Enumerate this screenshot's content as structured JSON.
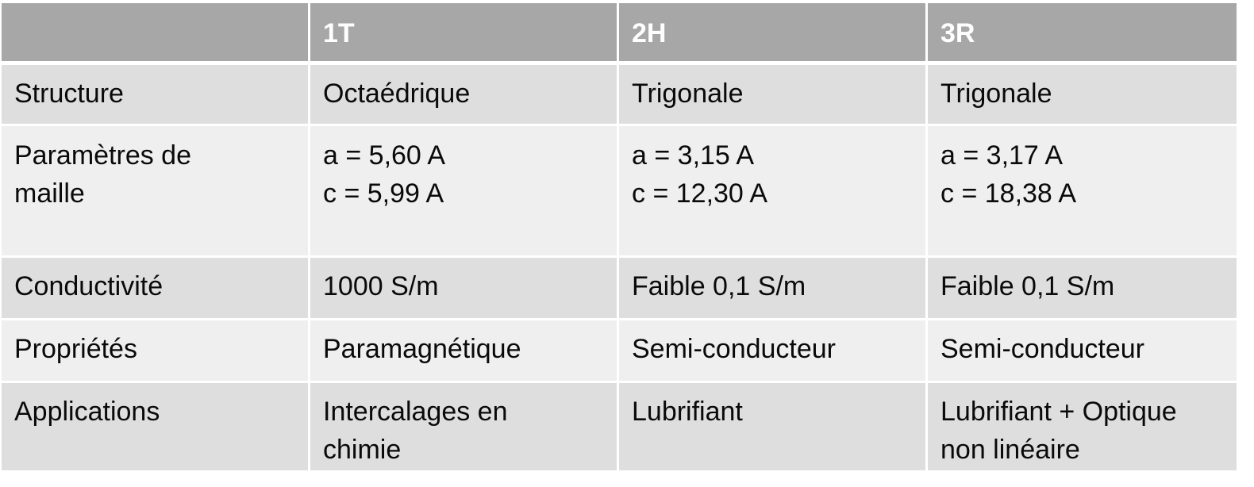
{
  "table": {
    "headers": [
      "",
      "1T",
      "2H",
      "3R"
    ],
    "rows": [
      {
        "label": "Structure",
        "cells": [
          "Octaédrique",
          "Trigonale",
          "Trigonale"
        ]
      },
      {
        "label": "Paramètres de\nmaille",
        "cells": [
          "a = 5,60 A\nc = 5,99 A",
          "a = 3,15 A\nc = 12,30 A",
          "a = 3,17 A\nc = 18,38 A"
        ]
      },
      {
        "label": "Conductivité",
        "cells": [
          "1000 S/m",
          "Faible 0,1 S/m",
          "Faible 0,1 S/m"
        ]
      },
      {
        "label": "Propriétés",
        "cells": [
          "Paramagnétique",
          "Semi-conducteur",
          "Semi-conducteur"
        ]
      },
      {
        "label": "Applications",
        "cells": [
          "Intercalages en\nchimie",
          "Lubrifiant",
          "Lubrifiant + Optique\nnon linéaire"
        ]
      }
    ]
  },
  "colors": {
    "header_bg": "#a7a7a7",
    "header_text": "#ffffff",
    "row_odd_bg": "#dedede",
    "row_even_bg": "#efefef"
  }
}
